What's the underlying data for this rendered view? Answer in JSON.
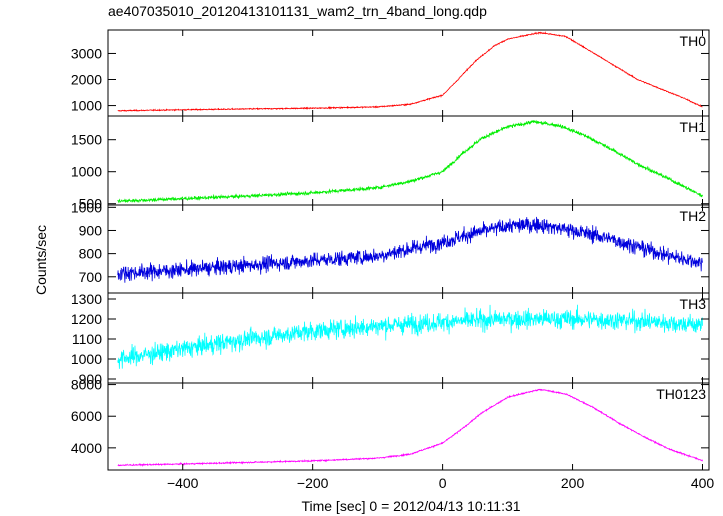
{
  "chart_data": {
    "type": "line",
    "title": "ae407035010_20120413101131_wam2_trn_4band_long.qdp",
    "xlabel": "Time [sec] 0 = 2012/04/13 10:11:31",
    "ylabel": "Counts/sec",
    "xlim": [
      -515,
      410
    ],
    "x_ticks": [
      -400,
      -200,
      0,
      200,
      400
    ],
    "x_tick_labels": [
      "−400",
      "−200",
      "0",
      "200",
      "400"
    ],
    "grid": false,
    "panels": [
      {
        "name": "TH0",
        "color": "#ff0000",
        "ylim": [
          600,
          3900
        ],
        "y_ticks": [
          1000,
          2000,
          3000
        ],
        "y_tick_labels": [
          "1000",
          "2000",
          "3000"
        ],
        "noise": 18,
        "points": [
          [
            -500,
            800
          ],
          [
            -400,
            840
          ],
          [
            -300,
            870
          ],
          [
            -200,
            900
          ],
          [
            -100,
            950
          ],
          [
            -50,
            1050
          ],
          [
            0,
            1400
          ],
          [
            20,
            1900
          ],
          [
            50,
            2700
          ],
          [
            80,
            3300
          ],
          [
            100,
            3550
          ],
          [
            150,
            3800
          ],
          [
            190,
            3650
          ],
          [
            220,
            3200
          ],
          [
            260,
            2600
          ],
          [
            300,
            2000
          ],
          [
            330,
            1700
          ],
          [
            370,
            1300
          ],
          [
            400,
            950
          ]
        ]
      },
      {
        "name": "TH1",
        "color": "#00ee00",
        "ylim": [
          480,
          1870
        ],
        "y_ticks": [
          500,
          1000,
          1500
        ],
        "y_tick_labels": [
          "500",
          "1000",
          "1500"
        ],
        "noise": 22,
        "points": [
          [
            -500,
            540
          ],
          [
            -400,
            580
          ],
          [
            -300,
            620
          ],
          [
            -200,
            670
          ],
          [
            -100,
            750
          ],
          [
            -50,
            850
          ],
          [
            0,
            1000
          ],
          [
            30,
            1280
          ],
          [
            60,
            1520
          ],
          [
            100,
            1700
          ],
          [
            140,
            1780
          ],
          [
            180,
            1720
          ],
          [
            220,
            1560
          ],
          [
            260,
            1350
          ],
          [
            300,
            1120
          ],
          [
            350,
            880
          ],
          [
            400,
            620
          ]
        ]
      },
      {
        "name": "TH2",
        "color": "#0000dd",
        "ylim": [
          630,
          1010
        ],
        "y_ticks": [
          700,
          800,
          900,
          1000
        ],
        "y_tick_labels": [
          "700",
          "800",
          "900",
          "1000"
        ],
        "noise": 28,
        "points": [
          [
            -500,
            715
          ],
          [
            -400,
            730
          ],
          [
            -300,
            750
          ],
          [
            -200,
            770
          ],
          [
            -100,
            790
          ],
          [
            -50,
            820
          ],
          [
            0,
            850
          ],
          [
            50,
            890
          ],
          [
            100,
            920
          ],
          [
            150,
            925
          ],
          [
            200,
            900
          ],
          [
            250,
            870
          ],
          [
            300,
            830
          ],
          [
            350,
            790
          ],
          [
            400,
            760
          ]
        ]
      },
      {
        "name": "TH3",
        "color": "#00ffff",
        "ylim": [
          880,
          1330
        ],
        "y_ticks": [
          900,
          1000,
          1100,
          1200,
          1300
        ],
        "y_tick_labels": [
          "900",
          "1000",
          "1100",
          "1200",
          "1300"
        ],
        "noise": 40,
        "points": [
          [
            -500,
            1000
          ],
          [
            -400,
            1050
          ],
          [
            -300,
            1100
          ],
          [
            -200,
            1140
          ],
          [
            -100,
            1165
          ],
          [
            0,
            1185
          ],
          [
            100,
            1200
          ],
          [
            200,
            1200
          ],
          [
            300,
            1190
          ],
          [
            400,
            1170
          ]
        ]
      },
      {
        "name": "TH0123",
        "color": "#ff00ff",
        "ylim": [
          2600,
          8100
        ],
        "y_ticks": [
          4000,
          6000,
          8000
        ],
        "y_tick_labels": [
          "4000",
          "6000",
          "8000"
        ],
        "noise": 35,
        "points": [
          [
            -500,
            2900
          ],
          [
            -400,
            2980
          ],
          [
            -300,
            3080
          ],
          [
            -200,
            3180
          ],
          [
            -100,
            3350
          ],
          [
            -50,
            3600
          ],
          [
            0,
            4300
          ],
          [
            30,
            5200
          ],
          [
            60,
            6200
          ],
          [
            100,
            7200
          ],
          [
            150,
            7700
          ],
          [
            190,
            7400
          ],
          [
            230,
            6600
          ],
          [
            270,
            5600
          ],
          [
            310,
            4700
          ],
          [
            350,
            3900
          ],
          [
            400,
            3200
          ]
        ]
      }
    ]
  }
}
